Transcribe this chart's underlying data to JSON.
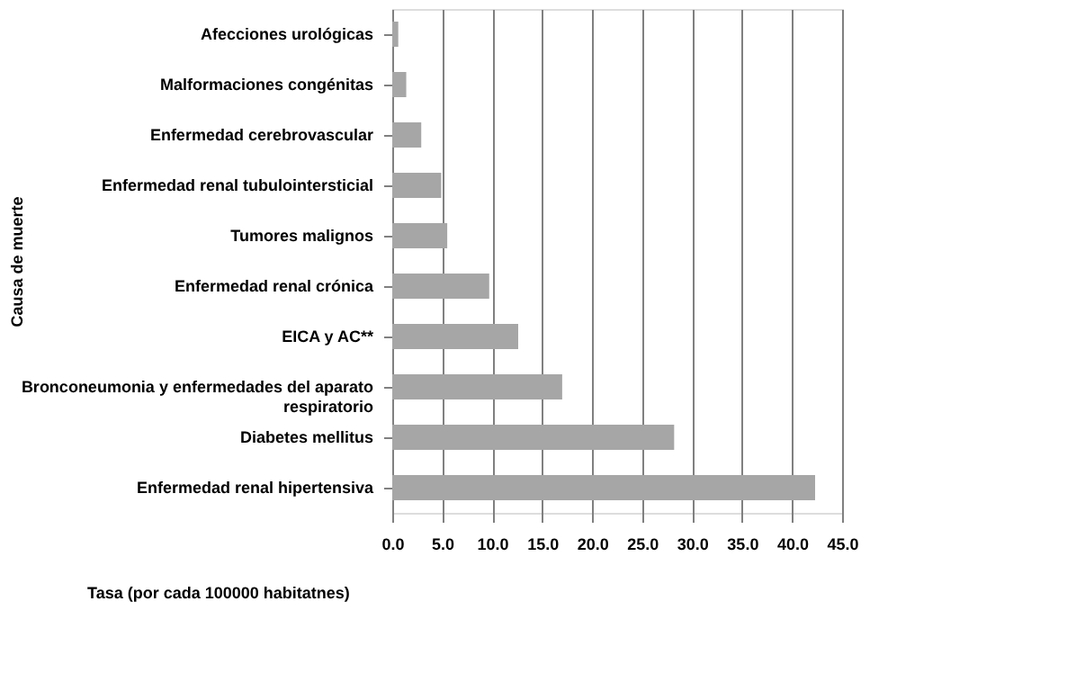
{
  "chart_data": {
    "type": "bar",
    "orientation": "horizontal",
    "xlabel": "Tasa (por cada 100000 habitatnes)",
    "ylabel": "Causa de muerte",
    "categories": [
      "Afecciones urológicas",
      "Malformaciones congénitas",
      "Enfermedad cerebrovascular",
      "Enfermedad renal tubulointersticial",
      "Tumores malignos",
      "Enfermedad renal crónica",
      "EICA y AC**",
      "Bronconeumonia y enfermedades del aparato respiratorio",
      "Diabetes mellitus",
      "Enfermedad renal hipertensiva"
    ],
    "values": [
      0.6,
      1.4,
      2.9,
      4.9,
      5.5,
      9.7,
      12.6,
      17.0,
      28.2,
      42.3
    ],
    "color": "#a6a6a6",
    "xlim": [
      0,
      45
    ],
    "xticks": [
      {
        "value": 0,
        "label": "0.0"
      },
      {
        "value": 5,
        "label": "5.0"
      },
      {
        "value": 10,
        "label": "10.0"
      },
      {
        "value": 15,
        "label": "15.0"
      },
      {
        "value": 20,
        "label": "20.0"
      },
      {
        "value": 25,
        "label": "25.0"
      },
      {
        "value": 30,
        "label": "30.0"
      },
      {
        "value": 35,
        "label": "35.0"
      },
      {
        "value": 40,
        "label": "40.0"
      },
      {
        "value": 45,
        "label": "45.0"
      }
    ],
    "grid": "x"
  }
}
